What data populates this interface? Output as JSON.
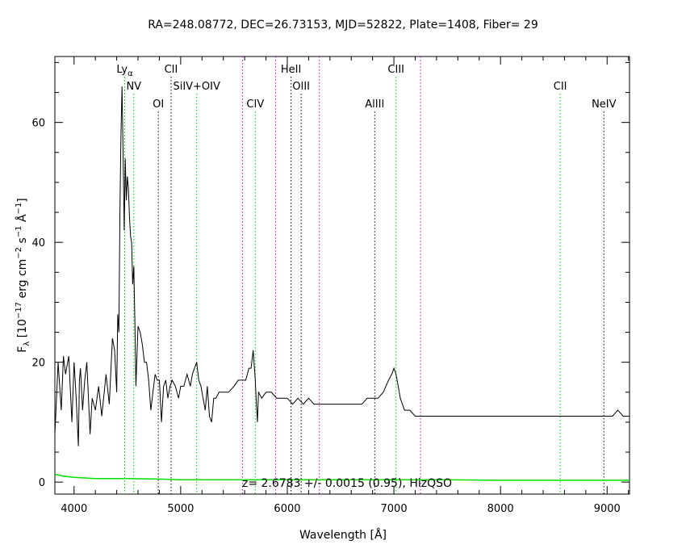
{
  "chart_data": {
    "type": "line",
    "title": "RA=248.08772, DEC=26.73153, MJD=52822, Plate=1408, Fiber= 29",
    "xlabel": "Wavelength [Å]",
    "ylabel_parts": {
      "f": "F",
      "lambda_sub": "λ",
      "open": " [10",
      "exp1": "−17",
      "mid": " erg cm",
      "exp2": "−2",
      "mid2": " s",
      "exp3": "−1",
      "angstrom": " Å",
      "exp4": "−1",
      "close": "]"
    },
    "xlim": [
      3820,
      9210
    ],
    "ylim": [
      -2,
      71
    ],
    "xticks": [
      4000,
      5000,
      6000,
      7000,
      8000,
      9000
    ],
    "yticks": [
      0,
      20,
      40,
      60
    ],
    "annotation": "z= 2.6783 +/- 0.0015 (0.95), HizQSO",
    "colors": {
      "spectrum": "#000000",
      "error": "#00e000",
      "line_black": "#000000",
      "line_green": "#00cc00",
      "line_magenta": "#cc00cc"
    },
    "lines": [
      {
        "label": "Ly",
        "sub": "α",
        "x": 4475,
        "row": 1,
        "color": "line_green"
      },
      {
        "label": "NV",
        "x": 4560,
        "row": 2,
        "color": "line_green"
      },
      {
        "label": "OI",
        "x": 4790,
        "row": 3,
        "color": "line_black"
      },
      {
        "label": "CII",
        "x": 4910,
        "row": 1,
        "color": "line_black"
      },
      {
        "label": "SiIV+OIV",
        "x": 5150,
        "row": 2,
        "color": "line_green"
      },
      {
        "label": "",
        "x": 5580,
        "row": 0,
        "color": "line_magenta"
      },
      {
        "label": "CIV",
        "x": 5700,
        "row": 3,
        "color": "line_green"
      },
      {
        "label": "",
        "x": 5890,
        "row": 0,
        "color": "line_magenta"
      },
      {
        "label": "HeII",
        "x": 6035,
        "row": 1,
        "color": "line_black"
      },
      {
        "label": "OIII",
        "x": 6130,
        "row": 2,
        "color": "line_black"
      },
      {
        "label": "",
        "x": 6300,
        "row": 0,
        "color": "line_magenta"
      },
      {
        "label": "AlIII",
        "x": 6820,
        "row": 3,
        "color": "line_black"
      },
      {
        "label": "CIII",
        "x": 7020,
        "row": 1,
        "color": "line_green"
      },
      {
        "label": "",
        "x": 7250,
        "row": 0,
        "color": "line_magenta"
      },
      {
        "label": "CII",
        "x": 8560,
        "row": 2,
        "color": "line_green"
      },
      {
        "label": "NeIV",
        "x": 8970,
        "row": 3,
        "color": "line_black"
      }
    ],
    "series": [
      {
        "x": [
          3820,
          3850,
          3880,
          3900,
          3920,
          3950,
          3980,
          4000,
          4020,
          4040,
          4050,
          4060,
          4080,
          4100,
          4120,
          4150,
          4170,
          4200,
          4230,
          4260,
          4300,
          4330,
          4360,
          4380,
          4400,
          4410,
          4420,
          4430,
          4440,
          4450,
          4460,
          4470,
          4480,
          4490,
          4500,
          4510,
          4520,
          4530,
          4540,
          4550,
          4560,
          4570,
          4580,
          4590,
          4600,
          4620,
          4640,
          4660,
          4680,
          4700,
          4720,
          4740,
          4760,
          4780,
          4800,
          4820,
          4840,
          4860,
          4880,
          4900,
          4920,
          4950,
          4980,
          5000,
          5030,
          5060,
          5090,
          5110,
          5130,
          5150,
          5170,
          5190,
          5210,
          5230,
          5250,
          5270,
          5290,
          5310,
          5330,
          5360,
          5400,
          5450,
          5500,
          5540,
          5580,
          5610,
          5640,
          5660,
          5680,
          5700,
          5710,
          5720,
          5730,
          5760,
          5800,
          5850,
          5900,
          5950,
          6000,
          6050,
          6100,
          6150,
          6200,
          6250,
          6300,
          6350,
          6400,
          6450,
          6500,
          6550,
          6600,
          6650,
          6700,
          6750,
          6800,
          6850,
          6900,
          6950,
          6980,
          7000,
          7020,
          7040,
          7060,
          7080,
          7100,
          7150,
          7200,
          7300,
          7400,
          7500,
          7600,
          7700,
          7800,
          7900,
          8000,
          8100,
          8200,
          8300,
          8400,
          8500,
          8600,
          8700,
          8800,
          8900,
          9000,
          9050,
          9100,
          9150,
          9210
        ],
        "y": [
          8,
          20,
          12,
          21,
          18,
          21,
          10,
          20,
          14,
          6,
          17,
          19,
          12,
          17,
          20,
          8,
          14,
          12,
          16,
          11,
          18,
          13,
          24,
          22,
          15,
          28,
          25,
          45,
          58,
          66,
          55,
          42,
          54,
          47,
          51,
          49,
          44,
          41,
          40,
          33,
          36,
          27,
          16,
          21,
          26,
          25,
          23,
          20,
          20,
          17,
          12,
          15,
          18,
          17,
          17,
          10,
          16,
          17,
          14,
          16,
          17,
          16,
          14,
          16,
          16,
          18,
          16,
          18,
          19,
          20,
          17,
          16,
          14,
          12,
          16,
          11,
          10,
          14,
          14,
          15,
          15,
          15,
          16,
          17,
          17,
          17,
          19,
          19,
          22,
          17,
          13,
          10,
          15,
          14,
          15,
          15,
          14,
          14,
          14,
          13,
          14,
          13,
          14,
          13,
          13,
          13,
          13,
          13,
          13,
          13,
          13,
          13,
          13,
          14,
          14,
          14,
          15,
          17,
          18,
          19,
          18,
          16,
          14,
          13,
          12,
          12,
          11,
          11,
          11,
          11,
          11,
          11,
          11,
          11,
          11,
          11,
          11,
          11,
          11,
          11,
          11,
          11,
          11,
          11,
          11,
          11,
          12,
          11,
          11
        ]
      },
      {
        "x": [
          3820,
          3900,
          4000,
          4200,
          4500,
          4800,
          5000,
          5500,
          6000,
          6500,
          7000,
          7500,
          8000,
          8500,
          9000,
          9210
        ],
        "y": [
          1.3,
          1.0,
          0.8,
          0.6,
          0.6,
          0.5,
          0.4,
          0.4,
          0.4,
          0.4,
          0.4,
          0.4,
          0.3,
          0.3,
          0.3,
          0.3
        ]
      }
    ]
  }
}
